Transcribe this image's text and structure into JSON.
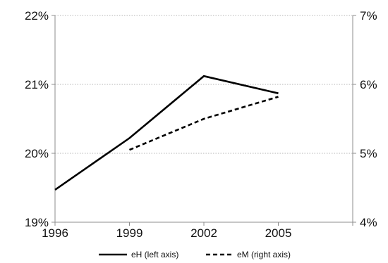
{
  "chart_data": {
    "type": "line",
    "x": [
      1996,
      1999,
      2002,
      2005
    ],
    "x_ticks": [
      "1996",
      "1999",
      "2002",
      "2005"
    ],
    "xlim": [
      1996,
      2008
    ],
    "y_left": {
      "ylim": [
        19,
        22
      ],
      "ticks": [
        19,
        20,
        21,
        22
      ],
      "tick_labels": [
        "19%",
        "20%",
        "21%",
        "22%"
      ]
    },
    "y_right": {
      "ylim": [
        4,
        7
      ],
      "ticks": [
        4,
        5,
        6,
        7
      ],
      "tick_labels": [
        "4%",
        "5%",
        "6%",
        "7%"
      ]
    },
    "grid": true,
    "legend_position": "bottom",
    "series": [
      {
        "name": "eH (left axis)",
        "axis": "left",
        "style": "solid",
        "color": "#000000",
        "points": [
          [
            1996,
            19.47
          ],
          [
            1999,
            20.22
          ],
          [
            2002,
            21.12
          ],
          [
            2005,
            20.87
          ]
        ]
      },
      {
        "name": "eM (right axis)",
        "axis": "right",
        "style": "dashed",
        "color": "#000000",
        "points": [
          [
            1999,
            5.05
          ],
          [
            2002,
            5.5
          ],
          [
            2005,
            5.82
          ]
        ]
      }
    ]
  }
}
